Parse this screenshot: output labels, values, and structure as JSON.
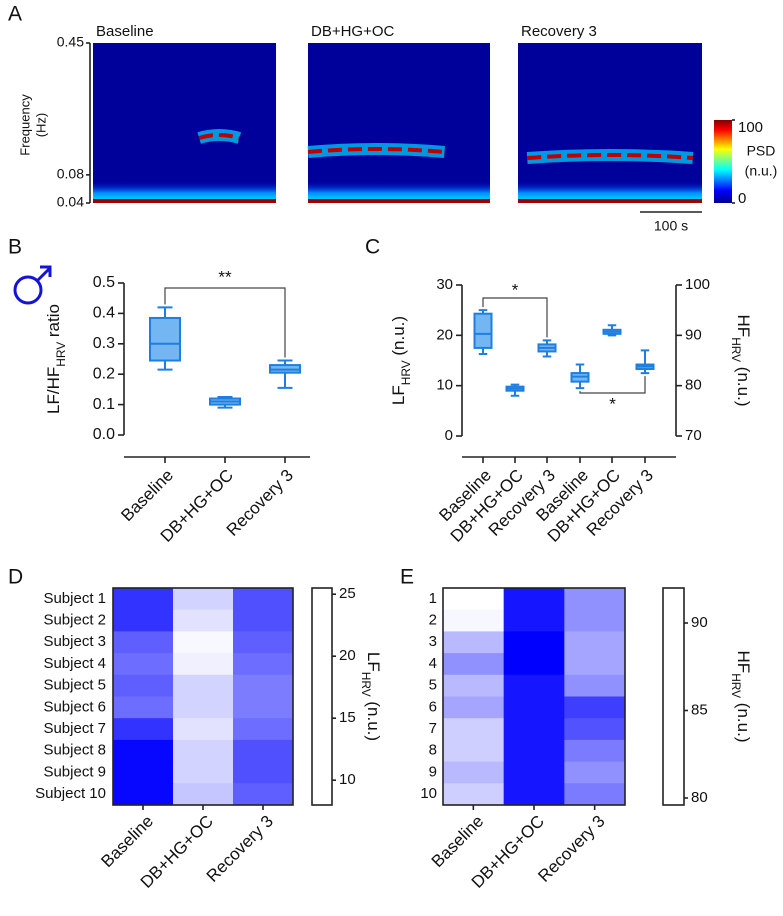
{
  "chart_data": [
    {
      "type": "spectrogram",
      "panel_label": "A",
      "titles": [
        "Baseline",
        "DB+HG+OC",
        "Recovery 3"
      ],
      "y_label": [
        "Frequency",
        "(Hz)"
      ],
      "yscale": "sqrt",
      "ylim": [
        0.04,
        0.45
      ],
      "yticks": [
        0.45,
        0.08,
        0.04
      ],
      "colorbar": {
        "label": [
          "PSD",
          "(n.u.)"
        ],
        "lim": [
          0,
          100
        ],
        "ticks": [
          0,
          100
        ],
        "colormap": "jet"
      },
      "scale_bar": {
        "label": "100 s"
      }
    },
    {
      "type": "box",
      "panel_label": "B",
      "categories": [
        "Baseline",
        "DB+HG+OC",
        "Recovery 3"
      ],
      "y_label": {
        "text": "LF/HF",
        "sub": "HRV",
        "suffix": " ratio"
      },
      "ylim": [
        0,
        0.5
      ],
      "yticks": [
        {
          "value": 0,
          "label": "0.0"
        },
        0.1,
        0.2,
        0.3,
        0.4,
        0.5
      ],
      "color": "#1e7fe0",
      "fill": "#74b6f2",
      "series": [
        {
          "axis": "y",
          "boxes": [
            {
              "min": 0.215,
              "q1": 0.245,
              "median": 0.3,
              "q3": 0.385,
              "max": 0.42
            },
            {
              "min": 0.09,
              "q1": 0.1,
              "median": 0.11,
              "q3": 0.12,
              "max": 0.125
            },
            {
              "min": 0.155,
              "q1": 0.205,
              "median": 0.215,
              "q3": 0.23,
              "max": 0.245
            }
          ]
        }
      ],
      "significance": [
        {
          "from": 0,
          "to": 2,
          "label": "**"
        }
      ]
    },
    {
      "type": "box",
      "panel_label": "C",
      "categories": [
        "Baseline",
        "DB+HG+OC",
        "Recovery 3",
        "Baseline",
        "DB+HG+OC",
        "Recovery 3"
      ],
      "y_label": {
        "text": "LF",
        "sub": "HRV",
        "suffix": " (n.u.)"
      },
      "y2_label": {
        "text": "HF",
        "sub": "HRV",
        "suffix": " (n.u.)"
      },
      "ylim": [
        0,
        30
      ],
      "yticks": [
        0,
        10,
        20,
        30
      ],
      "y2lim": [
        70,
        100
      ],
      "y2ticks": [
        70,
        80,
        90,
        100
      ],
      "color": "#1e7fe0",
      "fill": "#74b6f2",
      "series": [
        {
          "axis": "y",
          "boxes": [
            {
              "min": 16.3,
              "q1": 17.5,
              "median": 20.3,
              "q3": 24.3,
              "max": 25
            },
            {
              "min": 8,
              "q1": 9,
              "median": 9.4,
              "q3": 9.8,
              "max": 10.2
            },
            {
              "min": 15.8,
              "q1": 16.8,
              "median": 17.5,
              "q3": 18.2,
              "max": 19
            },
            null,
            null,
            null
          ]
        },
        {
          "axis": "y2",
          "boxes": [
            null,
            null,
            null,
            {
              "min": 79.5,
              "q1": 80.8,
              "median": 81.8,
              "q3": 82.5,
              "max": 84.2
            },
            {
              "min": 90,
              "q1": 90.3,
              "median": 90.7,
              "q3": 91.1,
              "max": 92
            },
            {
              "min": 82.5,
              "q1": 83.3,
              "median": 83.8,
              "q3": 84.2,
              "max": 87
            }
          ]
        }
      ],
      "significance": [
        {
          "from": 0,
          "to": 2,
          "label": "*"
        },
        {
          "from": 3,
          "to": 5,
          "label": "*"
        }
      ]
    },
    {
      "type": "heatmap",
      "panel_label": "D",
      "rows": [
        "Subject 1",
        "Subject 2",
        "Subject 3",
        "Subject 4",
        "Subject 5",
        "Subject 6",
        "Subject 7",
        "Subject 8",
        "Subject 9",
        "Subject 10"
      ],
      "columns": [
        "Baseline",
        "DB+HG+OC",
        "Recovery 3"
      ],
      "values": [
        [
          22,
          11,
          20
        ],
        [
          22,
          10,
          20
        ],
        [
          19,
          8.5,
          19
        ],
        [
          18,
          9,
          18
        ],
        [
          19,
          11,
          17
        ],
        [
          18,
          11,
          17
        ],
        [
          22,
          10,
          18
        ],
        [
          25,
          11,
          20
        ],
        [
          25,
          11,
          20
        ],
        [
          25,
          12,
          19
        ]
      ],
      "colors": [
        "#ffffff",
        "#0000ff"
      ],
      "zlim": [
        8,
        25.5
      ],
      "zticks": [
        10,
        15,
        20,
        25
      ],
      "z_label": {
        "text": "LF",
        "sub": "HRV",
        "suffix": " (n.u.)"
      }
    },
    {
      "type": "heatmap",
      "panel_label": "E",
      "rows": [
        "1",
        "2",
        "3",
        "4",
        "5",
        "6",
        "7",
        "8",
        "9",
        "10"
      ],
      "columns": [
        "Baseline",
        "DB+HG+OC",
        "Recovery 3"
      ],
      "values": [
        [
          79.5,
          91,
          85
        ],
        [
          80,
          91,
          85
        ],
        [
          83,
          92,
          84
        ],
        [
          85,
          92,
          84
        ],
        [
          83,
          91,
          85
        ],
        [
          84,
          91,
          89
        ],
        [
          82,
          91,
          88
        ],
        [
          82,
          91,
          86
        ],
        [
          83,
          91,
          85
        ],
        [
          82,
          91,
          86
        ]
      ],
      "colors": [
        "#ffffff",
        "#0000ff"
      ],
      "zlim": [
        79.6,
        92
      ],
      "zticks": [
        80,
        85,
        90
      ],
      "z_label": {
        "text": "HF",
        "sub": "HRV",
        "suffix": " (n.u.)"
      }
    }
  ]
}
